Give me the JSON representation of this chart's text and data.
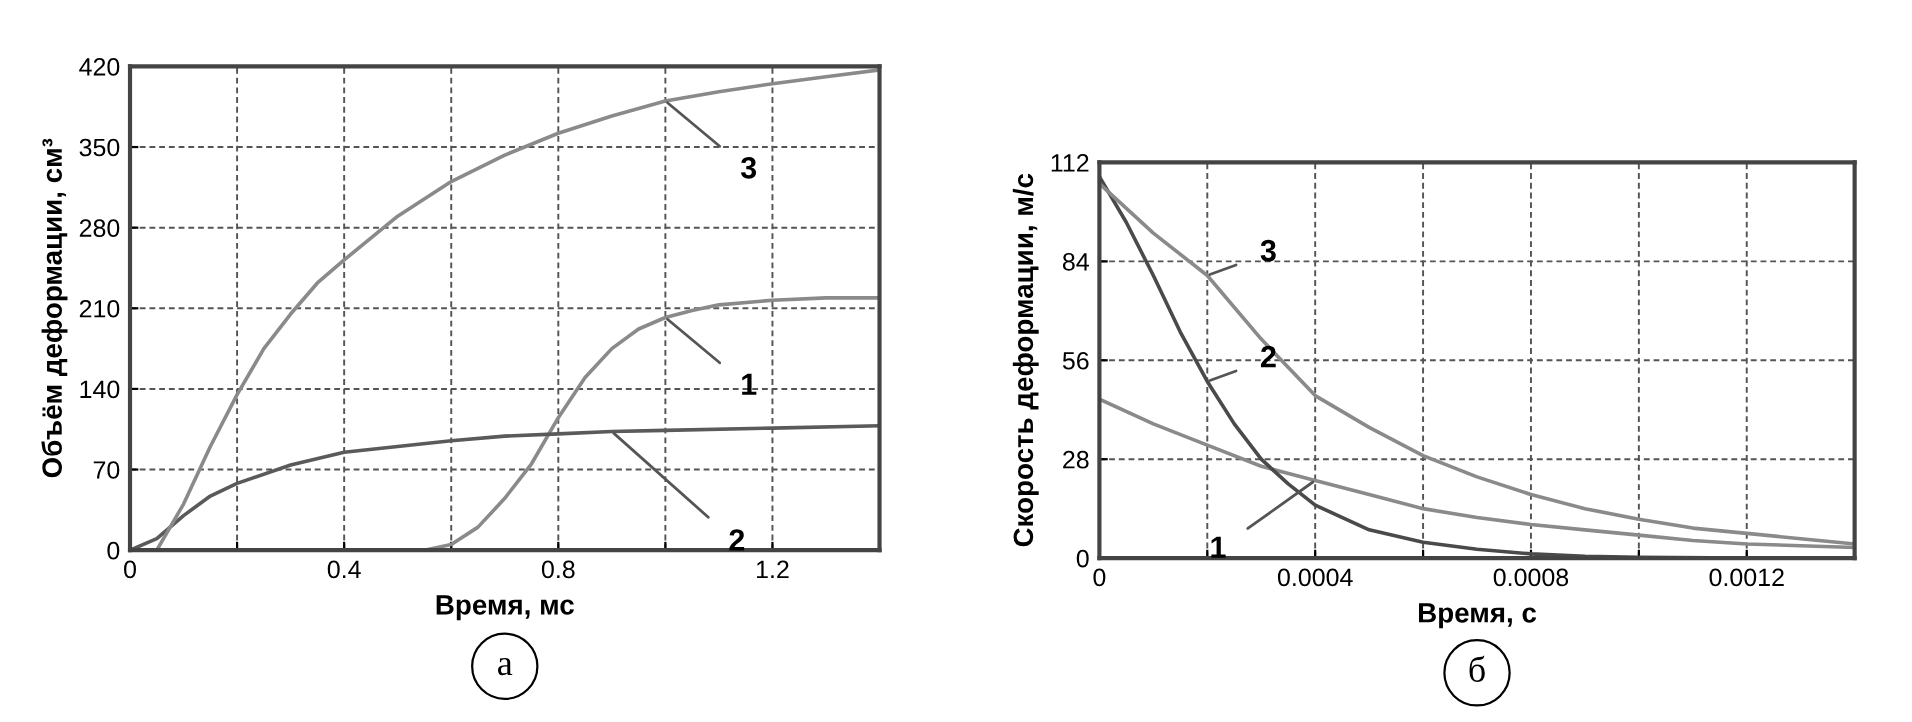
{
  "chart_data": [
    {
      "type": "line",
      "xlabel": "Время, мс",
      "ylabel": "Объём деформации, см³",
      "xlim": [
        0,
        1.4
      ],
      "ylim": [
        0,
        420
      ],
      "xticks": [
        0,
        {
          "value": 0.2,
          "label": null
        },
        0.4,
        {
          "value": 0.6,
          "label": null
        },
        0.8,
        {
          "value": 1.0,
          "label": null
        },
        1.2
      ],
      "yticks": [
        0,
        70,
        140,
        210,
        280,
        350,
        420
      ],
      "grid": true,
      "line_style": "solid",
      "marker": "none",
      "series": [
        {
          "color": "#8a8a8a",
          "x": [
            0,
            0.55,
            0.6,
            0.65,
            0.7,
            0.75,
            0.8,
            0.85,
            0.9,
            0.95,
            1.0,
            1.05,
            1.1,
            1.2,
            1.3,
            1.4
          ],
          "values": [
            0,
            0,
            5,
            20,
            45,
            75,
            115,
            150,
            175,
            192,
            202,
            208,
            213,
            217,
            219,
            219
          ]
        },
        {
          "color": "#5a5a5a",
          "x": [
            0,
            0.05,
            0.1,
            0.15,
            0.2,
            0.3,
            0.4,
            0.5,
            0.6,
            0.7,
            0.8,
            0.9,
            1.0,
            1.2,
            1.4
          ],
          "values": [
            0,
            10,
            30,
            47,
            58,
            74,
            85,
            90,
            95,
            99,
            101,
            103,
            104,
            106,
            108
          ]
        },
        {
          "color": "#8a8a8a",
          "x": [
            0,
            0.05,
            0.1,
            0.15,
            0.2,
            0.25,
            0.3,
            0.35,
            0.4,
            0.5,
            0.6,
            0.7,
            0.8,
            0.9,
            1.0,
            1.1,
            1.2,
            1.3,
            1.4
          ],
          "values": [
            0,
            0,
            40,
            90,
            135,
            175,
            205,
            232,
            252,
            290,
            320,
            343,
            362,
            377,
            390,
            398,
            405,
            411,
            417
          ]
        }
      ],
      "annotations": [
        {
          "text": "1",
          "x": 1.0,
          "y": 202
        },
        {
          "text": "2",
          "x": 0.9,
          "y": 103
        },
        {
          "text": "3",
          "x": 1.0,
          "y": 390
        },
        "а"
      ]
    },
    {
      "type": "line",
      "xlabel": "Время, с",
      "ylabel": "Скорость деформации, м/с",
      "xlim": [
        0,
        0.0014
      ],
      "ylim": [
        0,
        112
      ],
      "xticks": [
        0,
        {
          "value": 0.0002,
          "label": null
        },
        0.0004,
        {
          "value": 0.0006,
          "label": null
        },
        0.0008,
        {
          "value": 0.001,
          "label": null
        },
        0.0012
      ],
      "yticks": [
        0,
        28,
        56,
        84,
        112
      ],
      "grid": true,
      "line_style": "solid",
      "marker": "none",
      "series": [
        {
          "color": "#8a8a8a",
          "x": [
            0,
            0.0001,
            0.0002,
            0.0003,
            0.0004,
            0.0005,
            0.0006,
            0.0007,
            0.0008,
            0.0009,
            0.001,
            0.0011,
            0.0012,
            0.0013,
            0.0014
          ],
          "values": [
            45,
            38,
            32,
            26,
            22,
            18,
            14,
            11.5,
            9.5,
            8,
            6.5,
            5,
            4,
            3.5,
            3
          ]
        },
        {
          "color": "#4a4a4a",
          "x": [
            0,
            5e-05,
            0.0001,
            0.00015,
            0.0002,
            0.00025,
            0.0003,
            0.00035,
            0.0004,
            0.0005,
            0.0006,
            0.0007,
            0.0008,
            0.0009,
            0.001,
            0.0012,
            0.0014
          ],
          "values": [
            108,
            95,
            80,
            64,
            50,
            38,
            28,
            21,
            15,
            8,
            4.5,
            2.5,
            1.2,
            0.5,
            0.2,
            0,
            0
          ]
        },
        {
          "color": "#8a8a8a",
          "x": [
            0,
            0.0001,
            0.0002,
            0.0003,
            0.0004,
            0.0005,
            0.0006,
            0.0007,
            0.0008,
            0.0009,
            0.001,
            0.0011,
            0.0012,
            0.0013,
            0.0014
          ],
          "values": [
            106,
            92,
            80,
            62,
            46,
            37,
            29,
            23,
            18,
            14,
            11,
            8.5,
            7,
            5.5,
            4
          ]
        }
      ],
      "annotations": [
        {
          "text": "1",
          "x": 0.0004,
          "y": 22
        },
        {
          "text": "2",
          "x": 0.0002,
          "y": 50
        },
        {
          "text": "3",
          "x": 0.0002,
          "y": 80
        },
        "б"
      ]
    }
  ]
}
